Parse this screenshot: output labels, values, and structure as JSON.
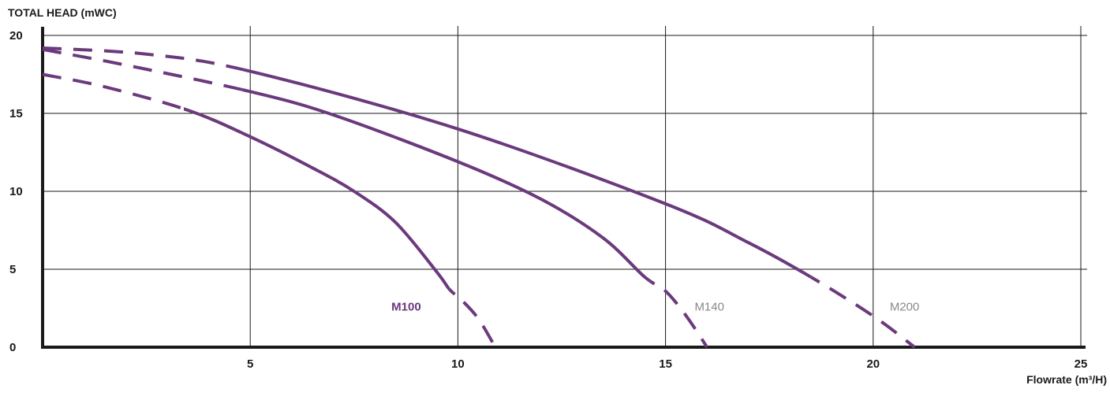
{
  "chart_data": {
    "type": "line",
    "ylabel": "TOTAL HEAD (mWC)",
    "xlabel": "Flowrate (m³/H)",
    "xlim": [
      0,
      25
    ],
    "ylim": [
      0,
      20
    ],
    "x_ticks": [
      "5",
      "10",
      "15",
      "20",
      "25"
    ],
    "y_ticks": [
      "0",
      "5",
      "10",
      "15",
      "20"
    ],
    "grid": true,
    "line_color": "#6b3a7d",
    "series": [
      {
        "name": "M100",
        "label_style": "bold",
        "points": [
          [
            0,
            17.5
          ],
          [
            1.5,
            16.7
          ],
          [
            3.5,
            15.2
          ],
          [
            5,
            13.5
          ],
          [
            6.5,
            11.5
          ],
          [
            7.5,
            10.0
          ],
          [
            8.5,
            8.0
          ],
          [
            9.5,
            4.8
          ],
          [
            9.8,
            3.7
          ],
          [
            10.1,
            3.0
          ],
          [
            10.5,
            1.8
          ],
          [
            10.9,
            0
          ]
        ],
        "dashed_ranges": [
          [
            0,
            3.4
          ],
          [
            9.8,
            10.9
          ]
        ],
        "label_at": [
          8.4,
          2.6
        ]
      },
      {
        "name": "M140",
        "label_style": "normal",
        "points": [
          [
            0,
            19.1
          ],
          [
            2,
            18.1
          ],
          [
            5,
            16.4
          ],
          [
            7,
            14.9
          ],
          [
            10,
            11.9
          ],
          [
            12,
            9.5
          ],
          [
            13.5,
            7.0
          ],
          [
            14.5,
            4.5
          ],
          [
            15,
            3.6
          ],
          [
            15.5,
            2.0
          ],
          [
            16,
            0
          ]
        ],
        "dashed_ranges": [
          [
            0,
            4.8
          ],
          [
            14.6,
            16.0
          ]
        ],
        "label_at": [
          15.7,
          2.6
        ]
      },
      {
        "name": "M200",
        "label_style": "normal",
        "points": [
          [
            0,
            19.2
          ],
          [
            2.5,
            18.8
          ],
          [
            5,
            17.7
          ],
          [
            10,
            14.0
          ],
          [
            15,
            9.2
          ],
          [
            17,
            6.7
          ],
          [
            18.5,
            4.5
          ],
          [
            20,
            2.0
          ],
          [
            21,
            0
          ]
        ],
        "dashed_ranges": [
          [
            0,
            4.7
          ],
          [
            18.5,
            21.0
          ]
        ],
        "label_at": [
          20.4,
          2.6
        ]
      }
    ]
  }
}
